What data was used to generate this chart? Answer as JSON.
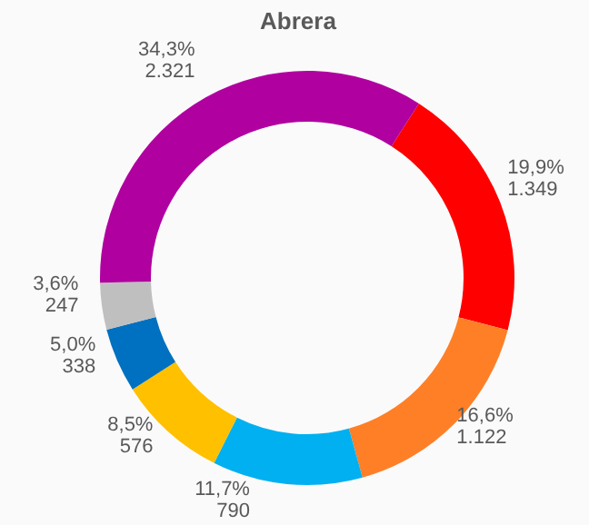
{
  "chart_data": {
    "type": "donut",
    "title": "Abrera",
    "categories": [
      null,
      null,
      null,
      null,
      null,
      null,
      null
    ],
    "values": [
      1349,
      1122,
      790,
      576,
      338,
      247,
      2321
    ],
    "colors": [
      "#ff0000",
      "#ff7f27",
      "#00b0f0",
      "#ffc000",
      "#0070c0",
      "#bfbfbf",
      "#b000a0"
    ],
    "value_labels": [
      "19,9%\n1.349",
      "16,6%\n1.122",
      "11,7%\n790",
      "8,5%\n576",
      "5,0%\n338",
      "3,6%\n247",
      "34,3%\n2.321"
    ],
    "legend": false
  }
}
